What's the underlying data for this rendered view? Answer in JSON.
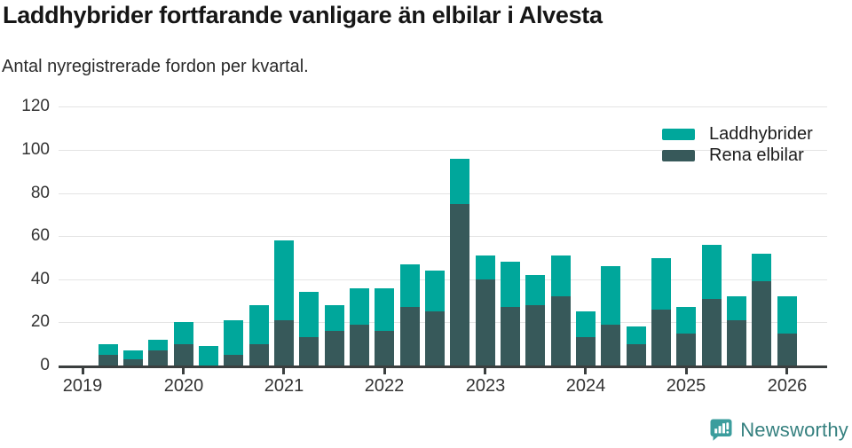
{
  "header": {
    "title": "Laddhybrider fortfarande vanligare än elbilar i Alvesta",
    "subtitle": "Antal nyregistrerade fordon per kvartal."
  },
  "footer": {
    "brand": "Newsworthy",
    "logo_icon": "speech-bubble-bar-chart",
    "brand_color": "#35807f",
    "logo_color": "#3b9d9d"
  },
  "colors": {
    "laddhybrider": "#00a79b",
    "rena_elbilar": "#37595a",
    "axis": "#3b3f3f",
    "gridline": "#e4e4e4",
    "text": "#333333",
    "title": "#161616"
  },
  "chart_data": {
    "type": "bar",
    "stacked": true,
    "title": "Laddhybrider fortfarande vanligare än elbilar i Alvesta",
    "subtitle": "Antal nyregistrerade fordon per kvartal.",
    "xlabel": "",
    "ylabel": "",
    "grid": true,
    "legend_position": "top-right",
    "y_axis": {
      "range": [
        0,
        120
      ],
      "ticks": [
        0,
        20,
        40,
        60,
        80,
        100,
        120
      ]
    },
    "x_axis": {
      "tick_labels": [
        "2019",
        "2020",
        "2021",
        "2022",
        "2023",
        "2024",
        "2025",
        "2026"
      ]
    },
    "quarters": [
      "2019 Q2",
      "2019 Q3",
      "2019 Q4",
      "2020 Q1",
      "2020 Q2",
      "2020 Q3",
      "2020 Q4",
      "2021 Q1",
      "2021 Q2",
      "2021 Q3",
      "2021 Q4",
      "2022 Q1",
      "2022 Q2",
      "2022 Q3",
      "2022 Q4",
      "2023 Q1",
      "2023 Q2",
      "2023 Q3",
      "2023 Q4",
      "2024 Q1",
      "2024 Q2",
      "2024 Q3",
      "2024 Q4",
      "2025 Q1",
      "2025 Q2",
      "2025 Q3",
      "2025 Q4",
      "2026 Q1"
    ],
    "series": [
      {
        "name": "Laddhybrider",
        "color": "#00a79b",
        "stack_order": "top",
        "values": [
          5,
          4,
          5,
          10,
          9,
          16,
          18,
          37,
          21,
          12,
          17,
          20,
          20,
          19,
          21,
          11,
          21,
          14,
          19,
          12,
          27,
          8,
          24,
          12,
          25,
          11,
          13,
          17
        ]
      },
      {
        "name": "Rena elbilar",
        "color": "#37595a",
        "stack_order": "bottom",
        "values": [
          5,
          3,
          7,
          10,
          0,
          5,
          10,
          21,
          13,
          16,
          19,
          16,
          27,
          25,
          75,
          40,
          27,
          28,
          32,
          13,
          19,
          10,
          26,
          15,
          31,
          21,
          39,
          15
        ]
      }
    ]
  }
}
